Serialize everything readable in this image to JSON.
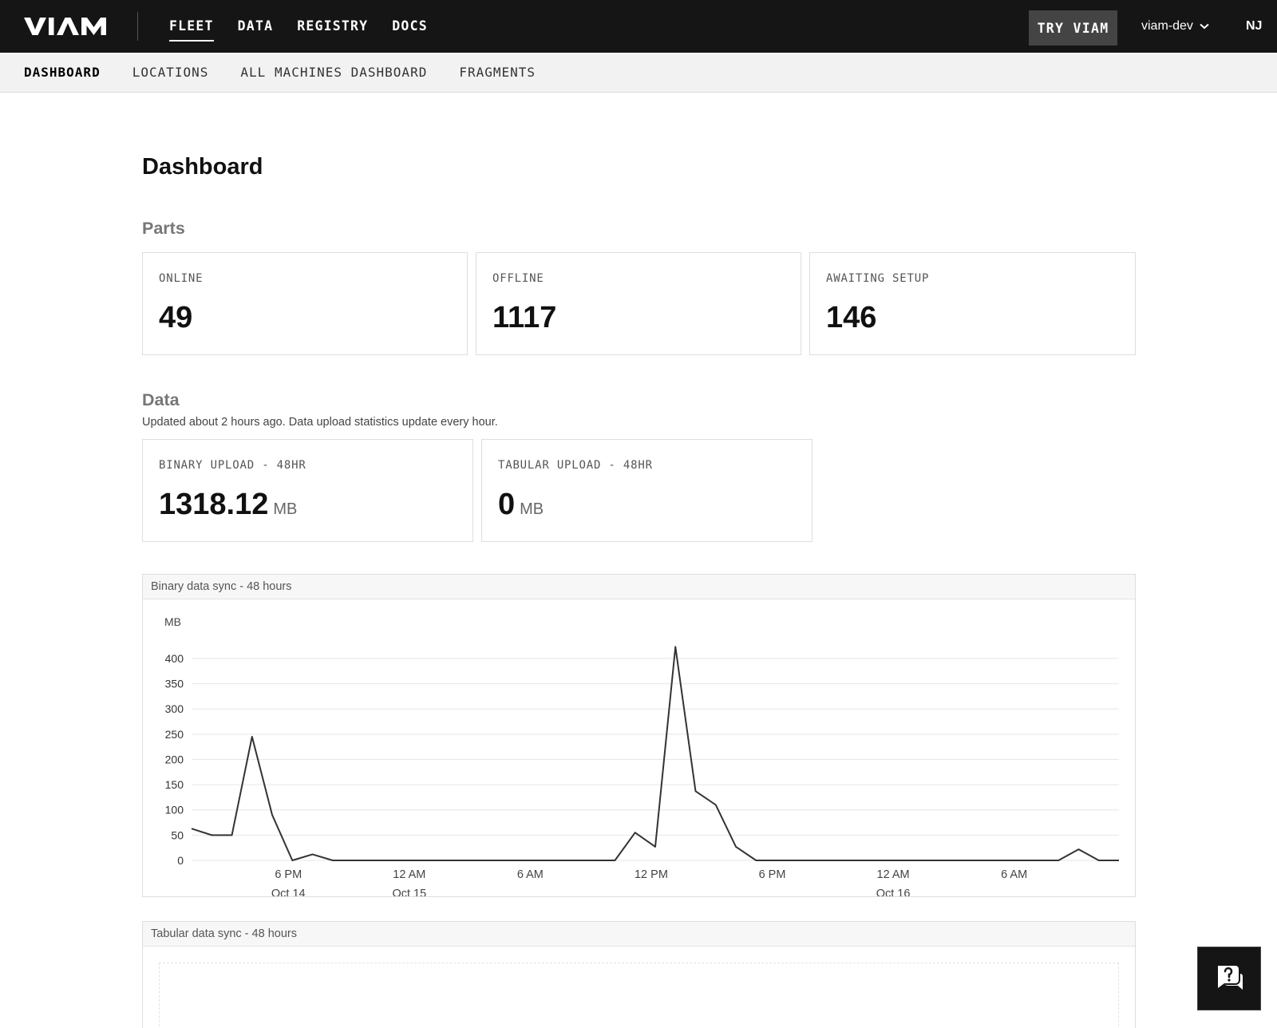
{
  "header": {
    "logo_text": "VIAM",
    "nav": [
      "FLEET",
      "DATA",
      "REGISTRY",
      "DOCS"
    ],
    "active_nav": "FLEET",
    "try_button": "TRY VIAM",
    "org_name": "viam-dev",
    "user_initials": "NJ"
  },
  "subnav": {
    "items": [
      "DASHBOARD",
      "LOCATIONS",
      "ALL MACHINES DASHBOARD",
      "FRAGMENTS"
    ],
    "active": "DASHBOARD"
  },
  "page": {
    "title": "Dashboard",
    "parts_title": "Parts",
    "data_title": "Data",
    "data_note": "Updated about 2 hours ago. Data upload statistics update every hour."
  },
  "parts": {
    "online_label": "ONLINE",
    "online_value": "49",
    "offline_label": "OFFLINE",
    "offline_value": "1117",
    "awaiting_label": "AWAITING SETUP",
    "awaiting_value": "146"
  },
  "uploads": {
    "binary_label": "BINARY UPLOAD - 48HR",
    "binary_value": "1318.12",
    "binary_unit": "MB",
    "tabular_label": "TABULAR UPLOAD - 48HR",
    "tabular_value": "0",
    "tabular_unit": "MB"
  },
  "charts": {
    "binary_title": "Binary data sync - 48 hours",
    "tabular_title": "Tabular data sync - 48 hours"
  },
  "colors": {
    "topbar": "#151515",
    "line": "#333333",
    "grid": "#e6e6e6"
  },
  "icons": {
    "org_dropdown": "chevron-down-icon",
    "help": "help-chat-icon"
  },
  "chart_data": {
    "type": "line",
    "title": "Binary data sync - 48 hours",
    "ylabel": "MB",
    "xlabel": "",
    "ylim": [
      0,
      430
    ],
    "yticks": [
      0,
      50,
      100,
      150,
      200,
      250,
      300,
      350,
      400
    ],
    "x_hours": [
      0,
      1,
      2,
      3,
      4,
      5,
      6,
      7,
      8,
      9,
      10,
      11,
      12,
      13,
      14,
      15,
      16,
      17,
      18,
      19,
      20,
      21,
      22,
      23,
      24,
      25,
      26,
      27,
      28,
      29,
      30,
      31,
      32,
      33,
      34,
      35,
      36,
      37,
      38,
      39,
      40,
      41,
      42,
      43,
      44,
      45,
      46
    ],
    "values": [
      63,
      50,
      50,
      245,
      90,
      0,
      12,
      0,
      0,
      0,
      0,
      0,
      0,
      0,
      0,
      0,
      0,
      0,
      0,
      0,
      0,
      0,
      55,
      27,
      423,
      137,
      110,
      27,
      0,
      0,
      0,
      0,
      0,
      0,
      0,
      0,
      0,
      0,
      0,
      0,
      0,
      0,
      0,
      0,
      22,
      0,
      0
    ],
    "x_ticks": [
      {
        "hour": 4.8,
        "label": "6 PM",
        "sub": "Oct 14"
      },
      {
        "hour": 10.8,
        "label": "12 AM",
        "sub": "Oct 15"
      },
      {
        "hour": 16.8,
        "label": "6 AM",
        "sub": ""
      },
      {
        "hour": 22.8,
        "label": "12 PM",
        "sub": ""
      },
      {
        "hour": 28.8,
        "label": "6 PM",
        "sub": ""
      },
      {
        "hour": 34.8,
        "label": "12 AM",
        "sub": "Oct 16"
      },
      {
        "hour": 40.8,
        "label": "6 AM",
        "sub": ""
      }
    ],
    "grid": true,
    "series": [
      {
        "values_ref": "values"
      }
    ]
  }
}
